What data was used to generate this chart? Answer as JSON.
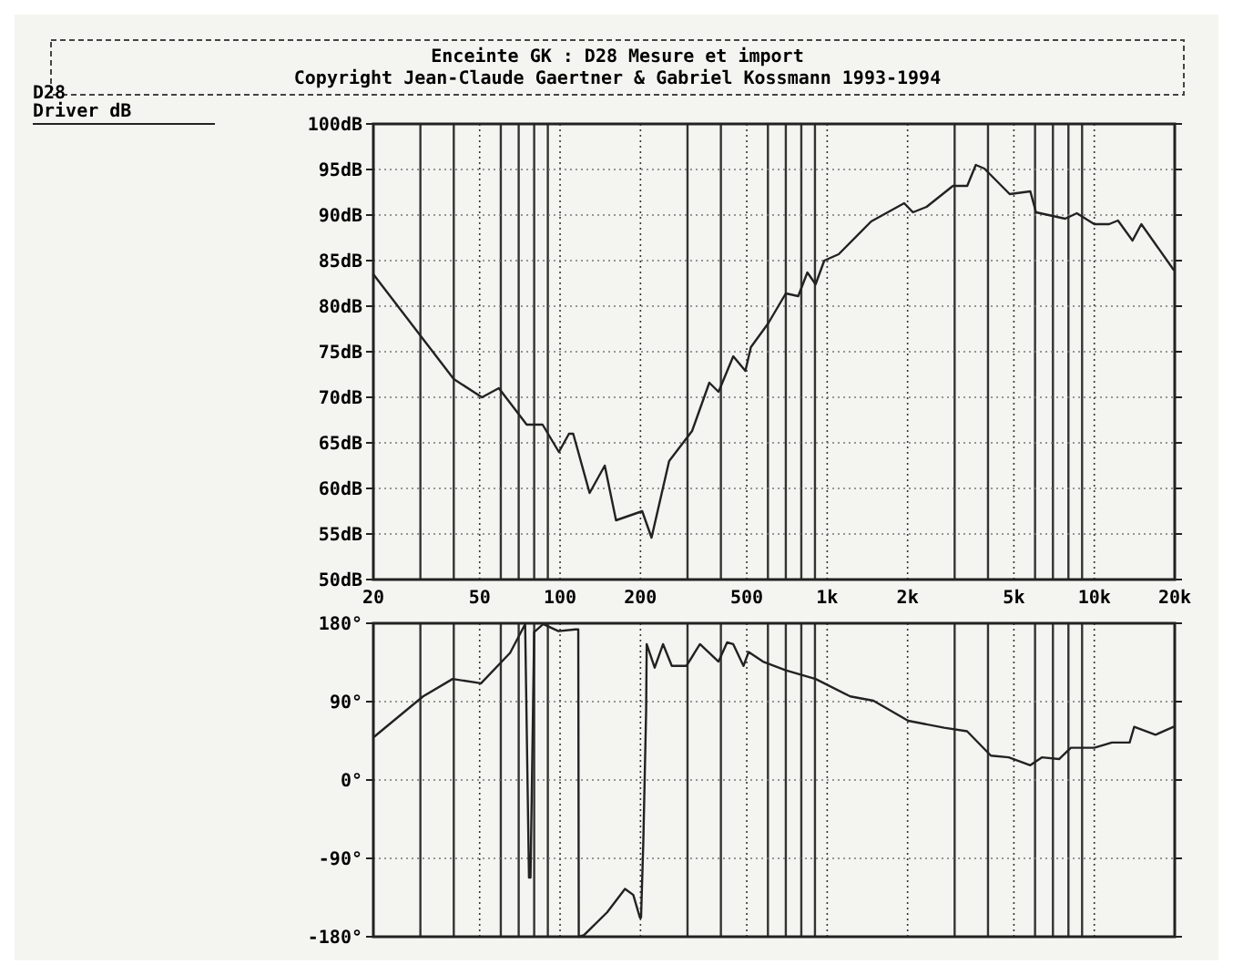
{
  "chart_data": [
    {
      "type": "line",
      "title": "Enceinte GK : D28 Mesure et import",
      "subtitle": "Copyright Jean-Claude Gaertner & Gabriel Kossmann 1993-1994",
      "ylabel": "D28\nDriver dB",
      "log": "x",
      "grid": true,
      "line_style": "solid",
      "marker": "none",
      "xlim": [
        20,
        20000
      ],
      "xticks": [
        20,
        {
          "value": 30,
          "label": null
        },
        {
          "value": 40,
          "label": null
        },
        50,
        {
          "value": 60,
          "label": null
        },
        {
          "value": 70,
          "label": null
        },
        {
          "value": 80,
          "label": null
        },
        {
          "value": 90,
          "label": null
        },
        100,
        200,
        {
          "value": 300,
          "label": null
        },
        {
          "value": 400,
          "label": null
        },
        500,
        {
          "value": 600,
          "label": null
        },
        {
          "value": 700,
          "label": null
        },
        {
          "value": 800,
          "label": null
        },
        {
          "value": 900,
          "label": null
        },
        {
          "value": 1000,
          "label": "1k"
        },
        {
          "value": 2000,
          "label": "2k"
        },
        {
          "value": 3000,
          "label": null
        },
        {
          "value": 4000,
          "label": null
        },
        {
          "value": 5000,
          "label": "5k"
        },
        {
          "value": 6000,
          "label": null
        },
        {
          "value": 7000,
          "label": null
        },
        {
          "value": 8000,
          "label": null
        },
        {
          "value": 9000,
          "label": null
        },
        {
          "value": 10000,
          "label": "10k"
        },
        {
          "value": 20000,
          "label": "20k"
        }
      ],
      "ylim": [
        50,
        100
      ],
      "yticks": [
        {
          "value": 50,
          "label": "50dB"
        },
        {
          "value": 55,
          "label": "55dB"
        },
        {
          "value": 60,
          "label": "60dB"
        },
        {
          "value": 65,
          "label": "65dB"
        },
        {
          "value": 70,
          "label": "70dB"
        },
        {
          "value": 75,
          "label": "75dB"
        },
        {
          "value": 80,
          "label": "80dB"
        },
        {
          "value": 85,
          "label": "85dB"
        },
        {
          "value": 90,
          "label": "90dB"
        },
        {
          "value": 95,
          "label": "95dB"
        },
        {
          "value": 100,
          "label": "100dB"
        }
      ],
      "series": [
        {
          "color": "#222222",
          "x": [
            20,
            40,
            51,
            59,
            75,
            86,
            99,
            108,
            112,
            129,
            147,
            162,
            203,
            220,
            256,
            312,
            362,
            392,
            445,
            494,
            518,
            601,
            700,
            779,
            843,
            905,
            975,
            1104,
            1461,
            1942,
            2094,
            2356,
            2957,
            3344,
            3600,
            3876,
            4823,
            5760,
            6050,
            7780,
            8600,
            10000,
            11360,
            12260,
            13900,
            15000,
            19800
          ],
          "values": [
            83.5,
            72,
            70,
            71,
            67,
            67,
            64,
            66,
            66,
            59.5,
            62.5,
            56.5,
            57.5,
            54.6,
            63,
            66.3,
            71.6,
            70.6,
            74.5,
            72.9,
            75.5,
            78.1,
            81.4,
            81.1,
            83.7,
            82.4,
            85,
            85.7,
            89.3,
            91.3,
            90.3,
            90.9,
            93.2,
            93.2,
            95.5,
            95.1,
            92.3,
            92.6,
            90.3,
            89.6,
            90.2,
            89,
            89,
            89.4,
            87.2,
            89,
            84
          ]
        }
      ]
    },
    {
      "type": "line",
      "log": "x",
      "grid": true,
      "line_style": "solid",
      "marker": "none",
      "tick_labels": "y",
      "xlim": [
        20,
        20000
      ],
      "ylim": [
        -180,
        180
      ],
      "yticks": [
        {
          "value": -180,
          "label": "-180°"
        },
        {
          "value": -90,
          "label": "-90°"
        },
        {
          "value": 0,
          "label": "0°"
        },
        {
          "value": 90,
          "label": "90°"
        },
        {
          "value": 180,
          "label": "180°"
        }
      ],
      "series": [
        {
          "color": "#222222",
          "x": [
            20.2,
            30.7,
            39.6,
            50.6,
            65,
            74,
            76.5,
            77.5,
            80,
            86.5,
            98.6,
            114,
            117,
            117.5,
            123,
            150,
            175,
            188,
            199,
            201,
            205,
            210,
            211,
            226,
            243,
            262,
            297,
            334,
            392,
            422,
            445,
            486,
            508,
            575,
            700,
            905,
            1220,
            1490,
            2010,
            2740,
            3340,
            4100,
            4780,
            5760,
            6360,
            7380,
            8170,
            10000,
            11640,
            13560,
            14100,
            16950,
            19800
          ],
          "values": [
            50,
            96,
            116,
            111,
            146,
            179,
            -112,
            -112,
            170,
            179,
            171,
            173,
            173,
            -180,
            -178,
            -152,
            -125,
            -132,
            -158,
            -158,
            -70,
            80,
            156,
            129,
            156,
            131,
            131,
            156,
            136,
            158,
            156,
            131,
            147,
            136,
            126,
            116,
            96,
            91,
            68,
            60,
            56,
            28,
            26,
            17,
            26,
            24,
            37,
            37,
            43,
            43,
            61,
            52,
            61
          ]
        }
      ]
    }
  ]
}
